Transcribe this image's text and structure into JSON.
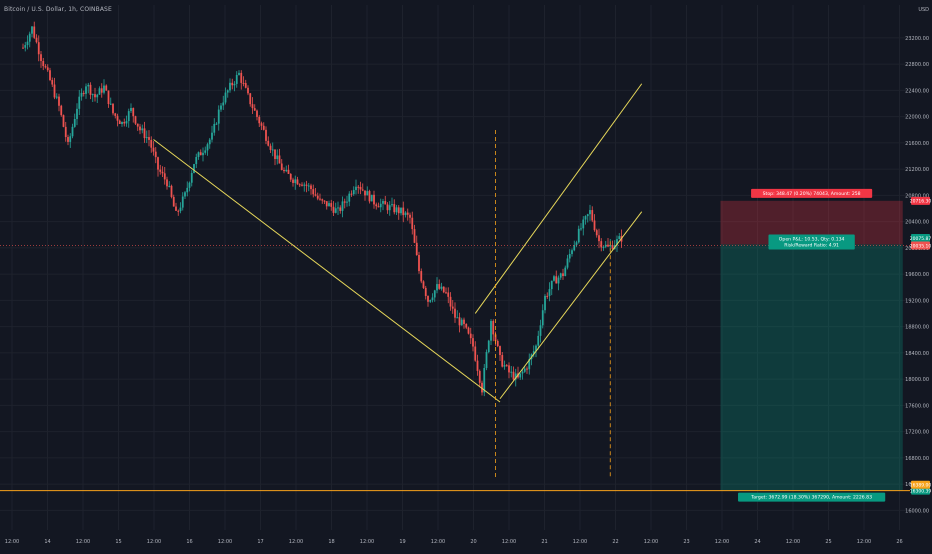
{
  "header": {
    "symbol_title": "Bitcoin / U.S. Dollar, 1h, COINBASE",
    "currency": "USD"
  },
  "colors": {
    "background": "#131722",
    "grid": "#1e222d",
    "up": "#26a69a",
    "down": "#ef5350",
    "trendline": "#e6d75a",
    "hline": "#f7a21b",
    "stop_zone": "rgba(242,54,69,0.28)",
    "target_zone": "rgba(8,153,129,0.28)"
  },
  "chart_data": {
    "type": "candlestick",
    "title": "Bitcoin / U.S. Dollar, 1h, COINBASE",
    "ylim": [
      15700,
      23700
    ],
    "grid": true,
    "y_ticks": [
      "23200.00",
      "22800.00",
      "22400.00",
      "22000.00",
      "21600.00",
      "21200.00",
      "20800.00",
      "20400.00",
      "20000.00",
      "19600.00",
      "19200.00",
      "18800.00",
      "18400.00",
      "18000.00",
      "17600.00",
      "17200.00",
      "16800.00",
      "16400.00",
      "16000.00",
      "15600.00"
    ],
    "x_ticks": [
      "12:00",
      "14",
      "12:00",
      "15",
      "12:00",
      "16",
      "12:00",
      "17",
      "12:00",
      "18",
      "12:00",
      "19",
      "12:00",
      "20",
      "12:00",
      "21",
      "12:00",
      "22",
      "12:00",
      "23",
      "12:00",
      "24",
      "12:00",
      "25",
      "12:00",
      "26"
    ],
    "price_anchors": [
      [
        0,
        23050
      ],
      [
        4,
        23350
      ],
      [
        8,
        22900
      ],
      [
        12,
        22550
      ],
      [
        16,
        22150
      ],
      [
        20,
        21550
      ],
      [
        24,
        22150
      ],
      [
        28,
        22500
      ],
      [
        32,
        22300
      ],
      [
        36,
        22450
      ],
      [
        40,
        22050
      ],
      [
        44,
        21900
      ],
      [
        48,
        22100
      ],
      [
        52,
        21800
      ],
      [
        56,
        21650
      ],
      [
        60,
        21200
      ],
      [
        64,
        21000
      ],
      [
        68,
        20500
      ],
      [
        72,
        20800
      ],
      [
        76,
        21300
      ],
      [
        80,
        21500
      ],
      [
        84,
        21700
      ],
      [
        88,
        22200
      ],
      [
        92,
        22450
      ],
      [
        96,
        22650
      ],
      [
        100,
        22300
      ],
      [
        104,
        22000
      ],
      [
        108,
        21700
      ],
      [
        112,
        21400
      ],
      [
        116,
        21150
      ],
      [
        120,
        21050
      ],
      [
        124,
        21000
      ],
      [
        128,
        20900
      ],
      [
        132,
        20700
      ],
      [
        136,
        20650
      ],
      [
        140,
        20550
      ],
      [
        144,
        20750
      ],
      [
        148,
        21000
      ],
      [
        152,
        20850
      ],
      [
        156,
        20700
      ],
      [
        160,
        20650
      ],
      [
        164,
        20600
      ],
      [
        168,
        20550
      ],
      [
        172,
        20450
      ],
      [
        176,
        19650
      ],
      [
        180,
        19200
      ],
      [
        184,
        19400
      ],
      [
        188,
        19300
      ],
      [
        192,
        18950
      ],
      [
        196,
        18800
      ],
      [
        200,
        18500
      ],
      [
        204,
        17850
      ],
      [
        208,
        18900
      ],
      [
        212,
        18300
      ],
      [
        216,
        18100
      ],
      [
        220,
        18000
      ],
      [
        224,
        18200
      ],
      [
        228,
        18500
      ],
      [
        232,
        19250
      ],
      [
        236,
        19500
      ],
      [
        240,
        19600
      ],
      [
        244,
        20000
      ],
      [
        248,
        20300
      ],
      [
        252,
        20550
      ],
      [
        256,
        20100
      ],
      [
        260,
        20000
      ],
      [
        264,
        20100
      ],
      [
        266,
        20150
      ]
    ],
    "trendlines": [
      {
        "name": "falling-wedge-left",
        "from": [
          58,
          21650
        ],
        "to": [
          212,
          17650
        ]
      },
      {
        "name": "channel-upper",
        "from": [
          201,
          19000
        ],
        "to": [
          275,
          22500
        ]
      },
      {
        "name": "channel-lower",
        "from": [
          212,
          17700
        ],
        "to": [
          275,
          20550
        ]
      }
    ],
    "vertical_markers": [
      {
        "name": "date-marker-1",
        "index": 210
      },
      {
        "name": "date-marker-2",
        "index": 261
      }
    ],
    "horizontal_lines": [
      {
        "name": "support-line",
        "price": 16300
      }
    ],
    "position": {
      "entry": 20050,
      "stop": 20716,
      "target": 16300,
      "start_index": 310,
      "end_index": 391,
      "stop_label": "Stop: 348.47 (0.20%) 74043, Amount: 258",
      "entry_label_1": "Open P&L: 10.53, Qty: 0.134",
      "entry_label_2": "Risk/Reward Ratio: 4.91",
      "target_label": "Target: 3672.99 (18.30%) 367290, Amount: 2226.83"
    },
    "price_tags": [
      {
        "name": "stop-price-tag",
        "price": 20716,
        "text": "20716.30",
        "color": "#f23645"
      },
      {
        "name": "entry-price-tag",
        "price": 20150,
        "text": "20075.87",
        "color": "#089981"
      },
      {
        "name": "current-price-tag",
        "price": 20035,
        "text": "20035.10",
        "color": "#ef5350"
      },
      {
        "name": "target-price-tag",
        "price": 16300,
        "text": "16300.39",
        "color": "#089981"
      },
      {
        "name": "support-price-tag",
        "price": 16390,
        "text": "16389.00",
        "color": "#f7a21b"
      }
    ]
  }
}
